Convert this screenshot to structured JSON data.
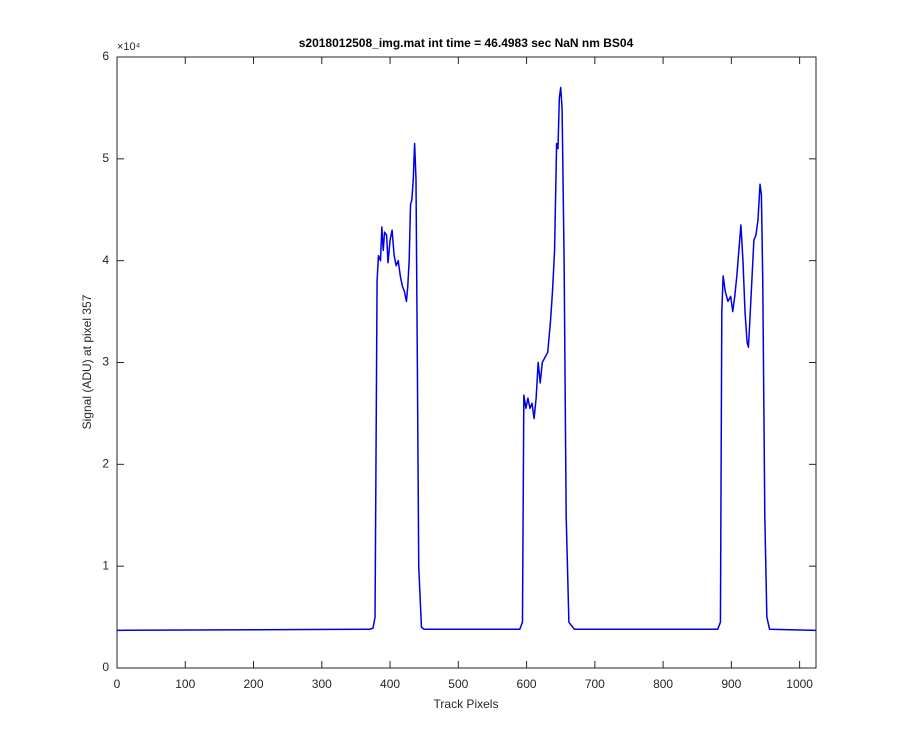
{
  "chart_data": {
    "type": "line",
    "title": "s2018012508_img.mat int time = 46.4983 sec  NaN nm BS04",
    "x_label": "Track Pixels",
    "y_label": "Signal (ADU) at pixel 357",
    "y_exponent_label": "×10⁴",
    "xlim": [
      0,
      1024
    ],
    "xticks": [
      0,
      100,
      200,
      300,
      400,
      500,
      600,
      700,
      800,
      900,
      1000
    ],
    "ylim": [
      0,
      60000
    ],
    "yticks": [
      {
        "value": 0,
        "label": "0"
      },
      {
        "value": 10000,
        "label": "1"
      },
      {
        "value": 20000,
        "label": "2"
      },
      {
        "value": 30000,
        "label": "3"
      },
      {
        "value": 40000,
        "label": "4"
      },
      {
        "value": 50000,
        "label": "5"
      },
      {
        "value": 60000,
        "label": "6"
      }
    ],
    "grid": false,
    "x": [
      0,
      370,
      375,
      378,
      381,
      383,
      386,
      388,
      390,
      392,
      395,
      397,
      400,
      403,
      406,
      409,
      412,
      415,
      418,
      421,
      424,
      426,
      428,
      430,
      432,
      434,
      436,
      438,
      440,
      442,
      446,
      450,
      590,
      594,
      596,
      599,
      602,
      605,
      608,
      611,
      614,
      617,
      620,
      623,
      627,
      631,
      635,
      638,
      641,
      644,
      646,
      648,
      650,
      652,
      655,
      658,
      662,
      670,
      880,
      884,
      886,
      888,
      891,
      895,
      899,
      902,
      905,
      908,
      911,
      914,
      917,
      920,
      923,
      925,
      927,
      930,
      933,
      936,
      939,
      942,
      944,
      946,
      949,
      952,
      956,
      1024
    ],
    "series": [
      {
        "name": "signal",
        "color": "#0000e6",
        "values": [
          3700,
          3800,
          3900,
          5000,
          38000,
          40500,
          40000,
          43300,
          41000,
          42800,
          42500,
          39800,
          42000,
          43000,
          40500,
          39500,
          40000,
          38500,
          37500,
          37000,
          36000,
          37500,
          40000,
          45500,
          46000,
          48000,
          51500,
          48000,
          30000,
          10000,
          4000,
          3800,
          3800,
          4500,
          26800,
          25500,
          26500,
          25500,
          26000,
          24500,
          26500,
          30000,
          28000,
          30000,
          30500,
          31000,
          34000,
          37000,
          41000,
          51500,
          51000,
          56000,
          57000,
          55000,
          40000,
          15000,
          4500,
          3800,
          3800,
          4500,
          35000,
          38500,
          37000,
          36000,
          36500,
          35000,
          36500,
          38500,
          41000,
          43500,
          40000,
          35000,
          32000,
          31500,
          34000,
          38000,
          42000,
          42500,
          44000,
          47500,
          46500,
          38000,
          15000,
          5000,
          3800,
          3700
        ]
      }
    ]
  }
}
